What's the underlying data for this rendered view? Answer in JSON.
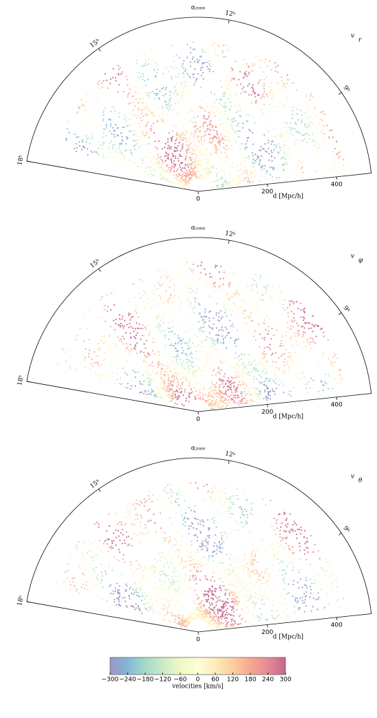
{
  "chart_data": [
    {
      "type": "wedge",
      "title_symbol": "v",
      "title_subscript": "r",
      "axis_label": "α₂₀₀₀",
      "radial_label": "d [Mpc/h]",
      "rlim": [
        0,
        500
      ],
      "rticks": [
        0,
        200,
        400
      ],
      "ra_lim": [
        7.1,
        18
      ],
      "ra_ticks": [
        {
          "value": 9,
          "label": "9ʰ"
        },
        {
          "value": 12,
          "label": "12ʰ"
        },
        {
          "value": 15,
          "label": "15ʰ"
        },
        {
          "value": 18,
          "label": "18ʰ"
        }
      ]
    },
    {
      "type": "wedge",
      "title_symbol": "v",
      "title_subscript": "φ",
      "axis_label": "α₂₀₀₀",
      "radial_label": "d [Mpc/h]",
      "rlim": [
        0,
        500
      ],
      "rticks": [
        0,
        200,
        400
      ],
      "ra_lim": [
        7.1,
        18
      ],
      "ra_ticks": [
        {
          "value": 9,
          "label": "9ʰ"
        },
        {
          "value": 12,
          "label": "12ʰ"
        },
        {
          "value": 15,
          "label": "15ʰ"
        },
        {
          "value": 18,
          "label": "18ʰ"
        }
      ]
    },
    {
      "type": "wedge",
      "title_symbol": "v",
      "title_subscript": "θ",
      "axis_label": "α₂₀₀₀",
      "radial_label": "d [Mpc/h]",
      "rlim": [
        0,
        500
      ],
      "rticks": [
        0,
        200,
        400
      ],
      "ra_lim": [
        7.1,
        18
      ],
      "ra_ticks": [
        {
          "value": 9,
          "label": "9ʰ"
        },
        {
          "value": 12,
          "label": "12ʰ"
        },
        {
          "value": 15,
          "label": "15ʰ"
        },
        {
          "value": 18,
          "label": "18ʰ"
        }
      ]
    },
    {
      "type": "colorbar",
      "label": "velocities [km/s]",
      "xlim": [
        -300,
        300
      ],
      "xticks": [
        {
          "value": -300,
          "label": "−300"
        },
        {
          "value": -240,
          "label": "−240"
        },
        {
          "value": -180,
          "label": "−180"
        },
        {
          "value": -120,
          "label": "−120"
        },
        {
          "value": -60,
          "label": "−60"
        },
        0,
        60,
        120,
        180,
        240,
        300
      ],
      "colors": [
        "#5e4fa2",
        "#3288bd",
        "#66c2a5",
        "#abdda4",
        "#e6f598",
        "#ffffbf",
        "#fee08b",
        "#fdae61",
        "#f46d43",
        "#d53e4f",
        "#9e0142"
      ]
    }
  ]
}
